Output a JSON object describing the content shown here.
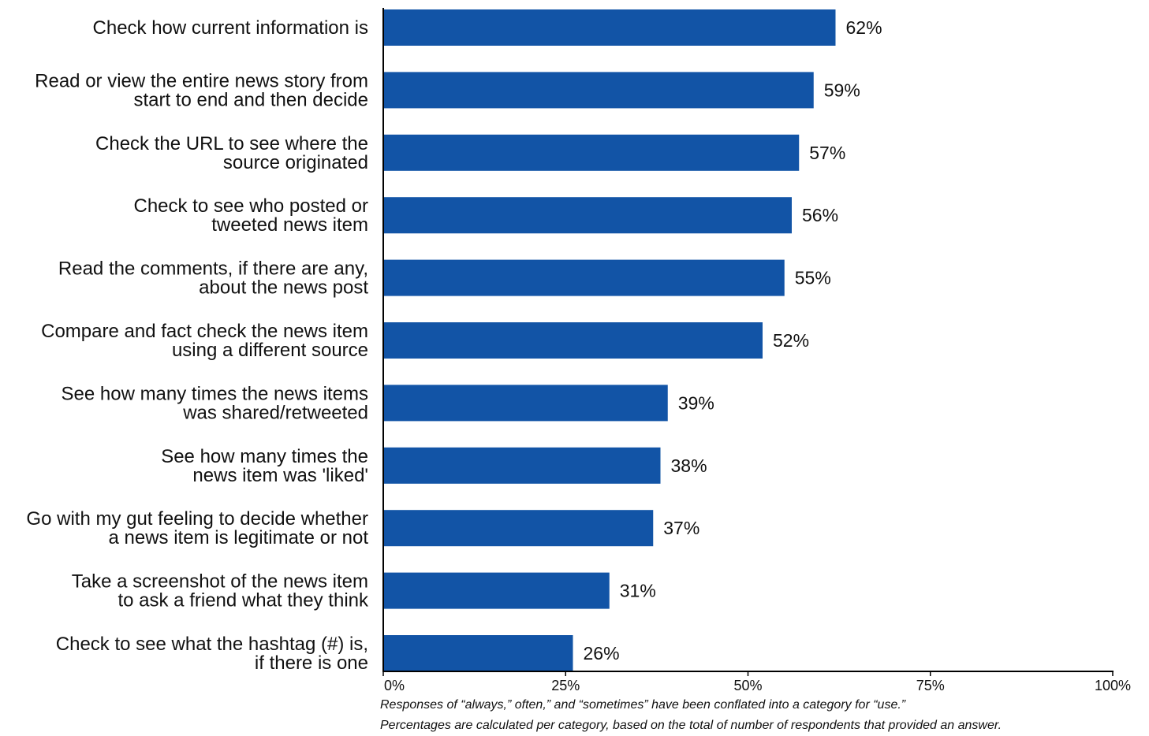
{
  "chart_data": {
    "type": "bar",
    "orientation": "horizontal",
    "categories": [
      [
        "Check how current information is"
      ],
      [
        "Read or view the entire news story from",
        "start to end and then decide"
      ],
      [
        "Check the URL to see where the",
        "source originated"
      ],
      [
        "Check to see who posted or",
        "tweeted news item"
      ],
      [
        "Read the comments, if there are any,",
        "about the news post"
      ],
      [
        "Compare and fact check the news item",
        "using a different source"
      ],
      [
        "See how many times the news items",
        "was shared/retweeted"
      ],
      [
        "See how many times the",
        "news item was 'liked'"
      ],
      [
        "Go with my gut feeling to decide whether",
        "a news item is legitimate or not"
      ],
      [
        "Take a screenshot of the news item",
        "to ask a friend what they think"
      ],
      [
        "Check to see what the hashtag (#) is,",
        "if there is one"
      ]
    ],
    "values": [
      62,
      59,
      57,
      56,
      55,
      52,
      39,
      38,
      37,
      31,
      26
    ],
    "value_labels": [
      "62%",
      "59%",
      "57%",
      "56%",
      "55%",
      "52%",
      "39%",
      "38%",
      "37%",
      "31%",
      "26%"
    ],
    "xlim": [
      0,
      100
    ],
    "xticks": [
      0,
      25,
      50,
      75,
      100
    ],
    "xtick_labels": [
      "0%",
      "25%",
      "50%",
      "75%",
      "100%"
    ],
    "grid": false,
    "colors": {
      "bar": "#1254a6",
      "axis": "#000000",
      "text": "#111111"
    }
  },
  "notes": [
    "Responses of “always,” often,” and “sometimes” have been conflated into a category for “use.”",
    "Percentages are calculated per category, based on the total of number of respondents that provided an answer."
  ]
}
